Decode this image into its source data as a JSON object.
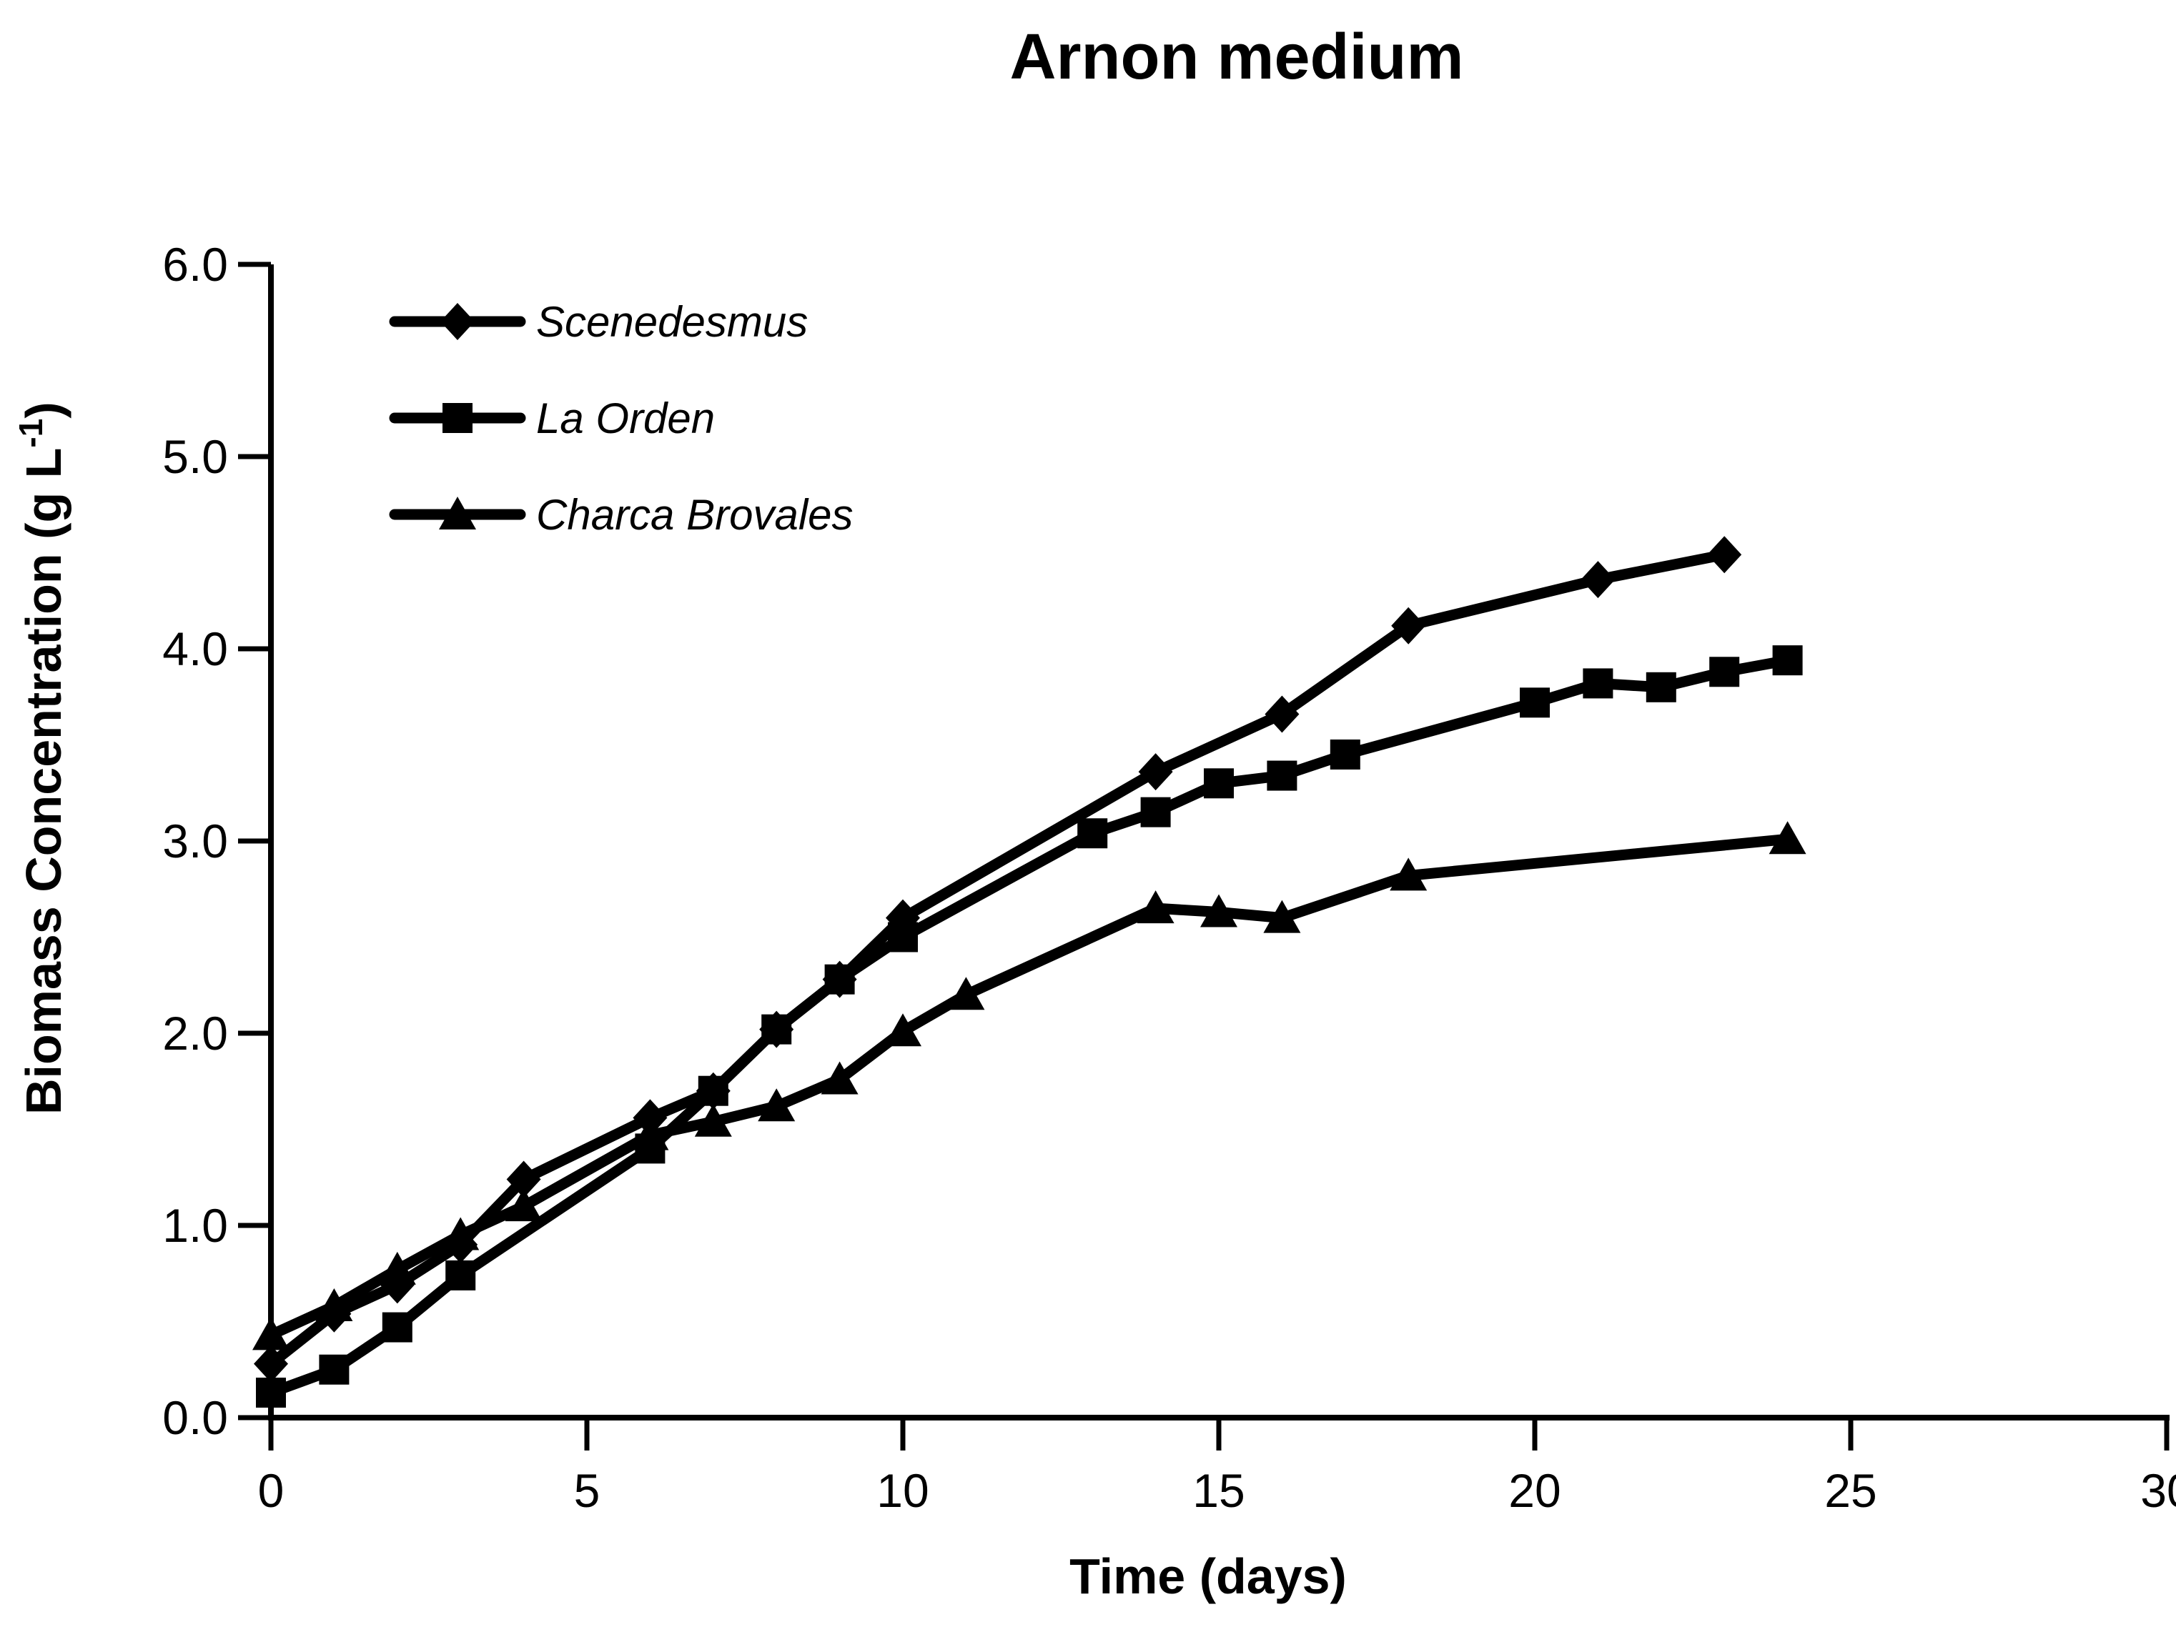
{
  "title": "Arnon medium",
  "axes": {
    "x": {
      "label": "Time (days)",
      "min": 0,
      "max": 30,
      "tick_values": [
        0,
        5,
        10,
        15,
        20,
        25,
        30
      ],
      "tick_labels": [
        "0",
        "5",
        "10",
        "15",
        "20",
        "25",
        "30"
      ]
    },
    "y": {
      "label_main": "Biomass Concentration (g L",
      "label_superscript": "-1",
      "label_close": ")",
      "min": 0,
      "max": 6,
      "tick_values": [
        0,
        1,
        2,
        3,
        4,
        5,
        6
      ],
      "tick_labels": [
        "0.0",
        "1.0",
        "2.0",
        "3.0",
        "4.0",
        "5.0",
        "6.0"
      ]
    }
  },
  "legend": {
    "items": [
      {
        "label": "Scenedesmus",
        "marker": "diamond"
      },
      {
        "label": "La Orden",
        "marker": "square"
      },
      {
        "label": "Charca Brovales",
        "marker": "triangle"
      }
    ]
  },
  "colors": {
    "series": "#000000",
    "background": "#ffffff"
  },
  "chart_data": {
    "type": "line",
    "title": "Arnon medium",
    "xlabel": "Time (days)",
    "ylabel": "Biomass Concentration (g L-1)",
    "xlim": [
      0,
      30
    ],
    "ylim": [
      0.0,
      6.0
    ],
    "grid": false,
    "legend_position": "upper-left-inside",
    "series": [
      {
        "name": "Scenedesmus",
        "marker": "diamond",
        "color": "#000000",
        "points": [
          [
            0,
            0.28
          ],
          [
            1,
            0.54
          ],
          [
            2,
            0.69
          ],
          [
            3,
            0.9
          ],
          [
            4,
            1.24
          ],
          [
            6,
            1.56
          ],
          [
            7,
            1.7
          ],
          [
            8,
            2.02
          ],
          [
            9,
            2.28
          ],
          [
            10,
            2.6
          ],
          [
            14,
            3.36
          ],
          [
            16,
            3.66
          ],
          [
            18,
            4.12
          ],
          [
            21,
            4.36
          ],
          [
            23,
            4.49
          ]
        ]
      },
      {
        "name": "La Orden",
        "marker": "square",
        "color": "#000000",
        "points": [
          [
            0,
            0.13
          ],
          [
            1,
            0.25
          ],
          [
            2,
            0.47
          ],
          [
            3,
            0.74
          ],
          [
            6,
            1.4
          ],
          [
            7,
            1.7
          ],
          [
            8,
            2.02
          ],
          [
            9,
            2.28
          ],
          [
            10,
            2.5
          ],
          [
            13,
            3.04
          ],
          [
            14,
            3.15
          ],
          [
            15,
            3.3
          ],
          [
            16,
            3.34
          ],
          [
            17,
            3.45
          ],
          [
            20,
            3.72
          ],
          [
            21,
            3.82
          ],
          [
            22,
            3.8
          ],
          [
            23,
            3.88
          ],
          [
            24,
            3.94
          ]
        ]
      },
      {
        "name": "Charca Brovales",
        "marker": "triangle",
        "color": "#000000",
        "points": [
          [
            0,
            0.43
          ],
          [
            1,
            0.58
          ],
          [
            2,
            0.77
          ],
          [
            3,
            0.95
          ],
          [
            4,
            1.1
          ],
          [
            6,
            1.47
          ],
          [
            7,
            1.54
          ],
          [
            8,
            1.62
          ],
          [
            9,
            1.76
          ],
          [
            10,
            2.01
          ],
          [
            11,
            2.2
          ],
          [
            14,
            2.65
          ],
          [
            15,
            2.63
          ],
          [
            16,
            2.6
          ],
          [
            18,
            2.82
          ],
          [
            24,
            3.01
          ]
        ]
      }
    ]
  }
}
